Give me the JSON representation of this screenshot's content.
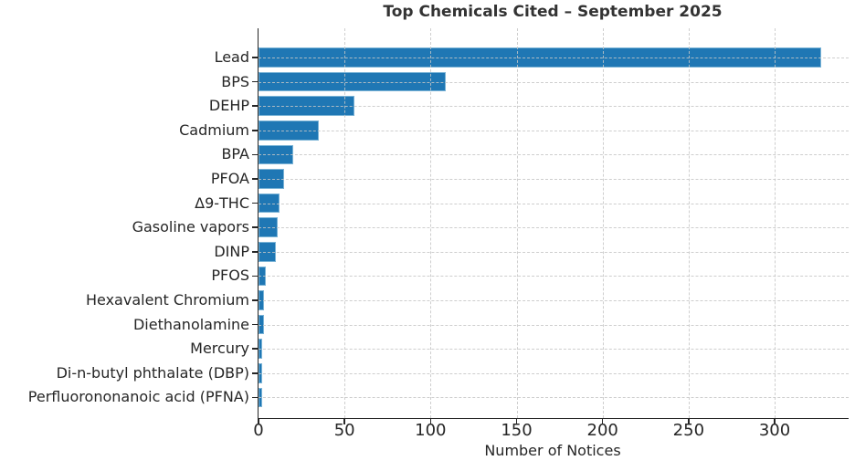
{
  "chart_data": {
    "type": "bar",
    "orientation": "horizontal",
    "title": "Top Chemicals Cited – September 2025",
    "xlabel": "Number of Notices",
    "categories": [
      "Lead",
      "BPS",
      "DEHP",
      "Cadmium",
      "BPA",
      "PFOA",
      "Δ9-THC",
      "Gasoline vapors",
      "DINP",
      "PFOS",
      "Hexavalent Chromium",
      "Diethanolamine",
      "Mercury",
      "Di-n-butyl phthalate (DBP)",
      "Perfluorononanoic acid (PFNA)"
    ],
    "values": [
      327,
      109,
      56,
      35,
      20,
      15,
      12,
      11,
      10,
      4,
      3,
      3,
      2,
      2,
      2
    ],
    "xticks": [
      0,
      50,
      100,
      150,
      200,
      250,
      300
    ],
    "xlim": [
      0,
      343
    ],
    "bar_color": "#1f77b4",
    "bar_edge_color": "#7ab3d6",
    "grid_style": "dashed",
    "grid_on": true,
    "legend": "none"
  }
}
